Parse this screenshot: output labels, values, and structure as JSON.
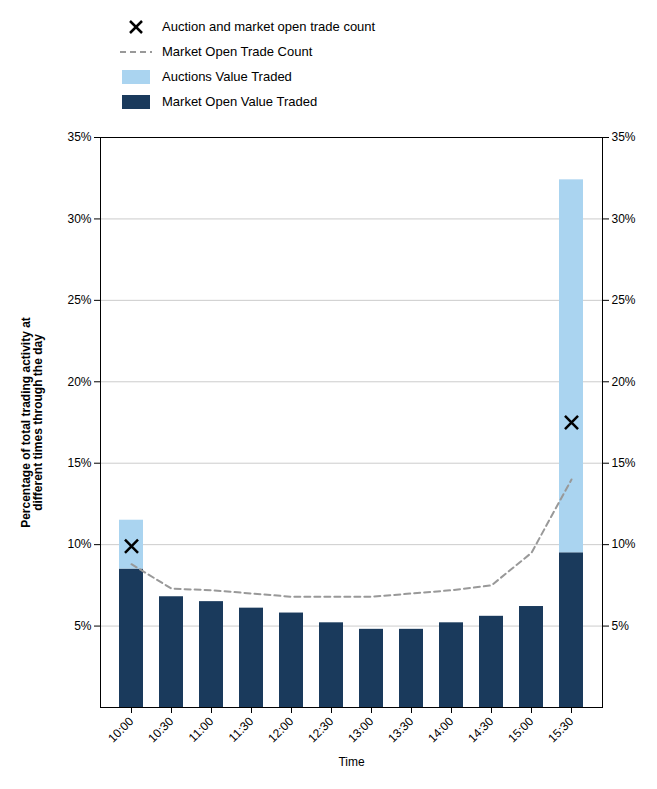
{
  "chart_data": {
    "type": "bar",
    "stacked": true,
    "categories": [
      "10:00",
      "10:30",
      "11:00",
      "11:30",
      "12:00",
      "12:30",
      "13:00",
      "13:30",
      "14:00",
      "14:30",
      "15:00",
      "15:30"
    ],
    "xlabel": "Time",
    "ylabel": "Percentage of total trading activity at\ndifferent times through the day",
    "ylim": [
      0,
      35
    ],
    "yticks": [
      {
        "value": 5,
        "label": "5%"
      },
      {
        "value": 10,
        "label": "10%"
      },
      {
        "value": 15,
        "label": "15%"
      },
      {
        "value": 20,
        "label": "20%"
      },
      {
        "value": 25,
        "label": "25%"
      },
      {
        "value": 30,
        "label": "30%"
      },
      {
        "value": 35,
        "label": "35%"
      }
    ],
    "grid": true,
    "legend": "top",
    "series": [
      {
        "name": "Market Open Value Traded",
        "type": "bar",
        "color": "#1a3a5c",
        "values": [
          8.5,
          6.8,
          6.5,
          6.1,
          5.8,
          5.2,
          4.8,
          4.8,
          5.2,
          5.6,
          6.2,
          9.5
        ]
      },
      {
        "name": "Auctions Value Traded",
        "type": "bar",
        "color": "#aad4f0",
        "values": [
          3.0,
          0.0,
          0.0,
          0.0,
          0.0,
          0.0,
          0.0,
          0.0,
          0.0,
          0.0,
          0.0,
          22.9
        ]
      },
      {
        "name": "Market Open Trade Count",
        "type": "line",
        "color": "#999999",
        "line_style": "dashed",
        "values": [
          8.8,
          7.3,
          7.2,
          7.0,
          6.8,
          6.8,
          6.8,
          7.0,
          7.2,
          7.5,
          9.5,
          14.0
        ]
      },
      {
        "name": "Auction and market open trade count",
        "type": "scatter",
        "color": "black",
        "marker": "x",
        "values": [
          9.9,
          null,
          null,
          null,
          null,
          null,
          null,
          null,
          null,
          null,
          null,
          17.5
        ]
      }
    ]
  }
}
